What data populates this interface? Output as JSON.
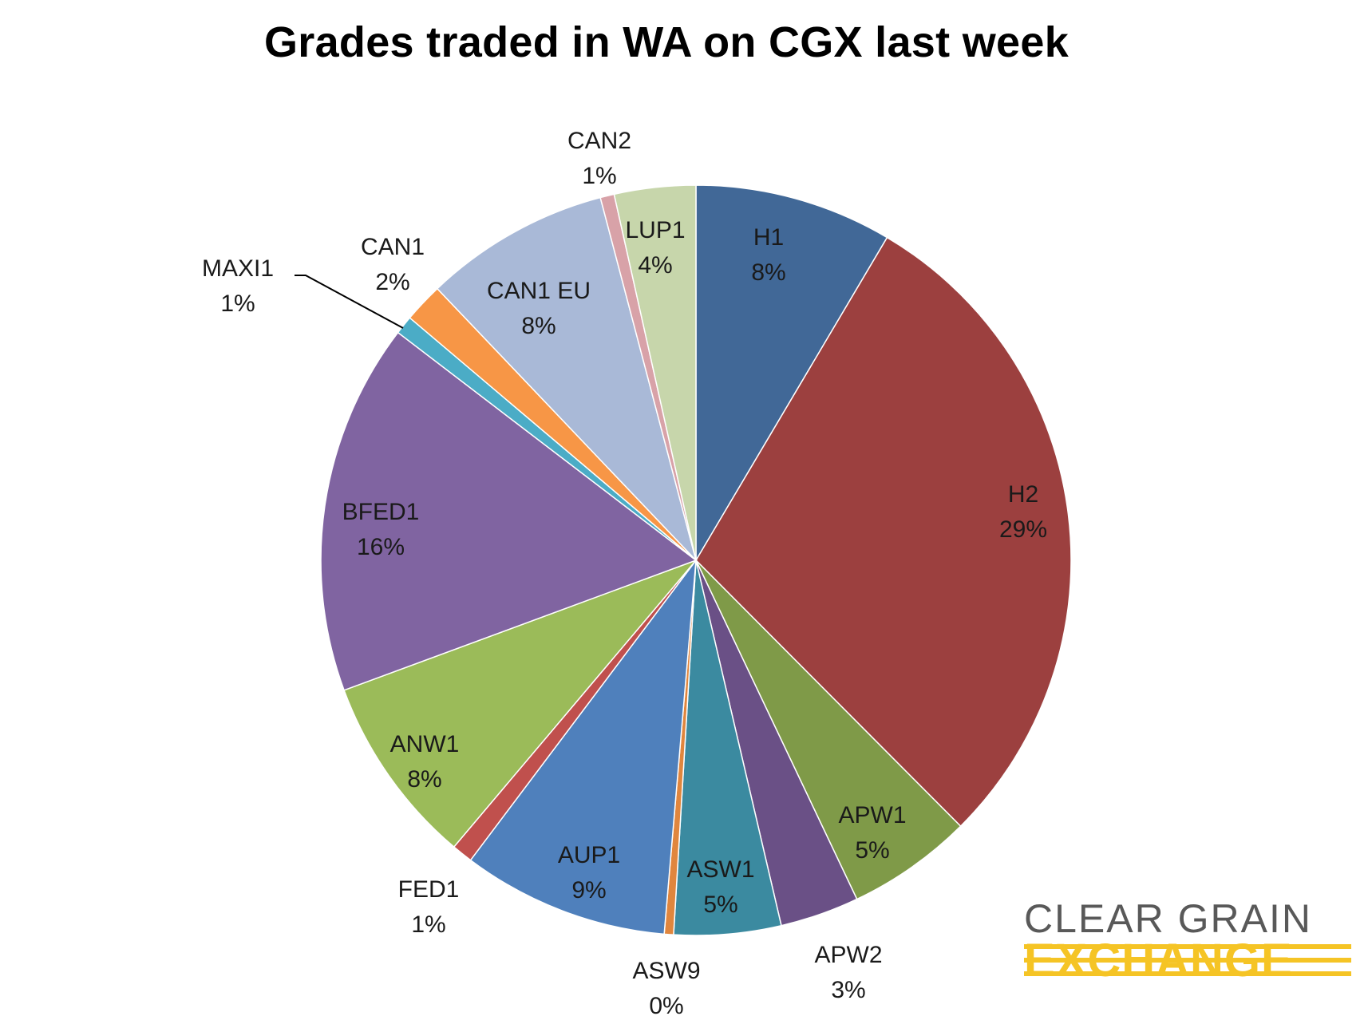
{
  "chart_data": {
    "type": "pie",
    "title": "Grades traded in WA on CGX last week",
    "start_angle_deg": 0,
    "direction": "clockwise",
    "slices": [
      {
        "label": "H1",
        "pct_label": "8%",
        "value": 8.5,
        "color": "#416897"
      },
      {
        "label": "H2",
        "pct_label": "29%",
        "value": 29.0,
        "color": "#9c403f"
      },
      {
        "label": "APW1",
        "pct_label": "5%",
        "value": 5.4,
        "color": "#7f9a48"
      },
      {
        "label": "APW2",
        "pct_label": "3%",
        "value": 3.4,
        "color": "#6a5086"
      },
      {
        "label": "ASW1",
        "pct_label": "5%",
        "value": 4.6,
        "color": "#3b8aa0"
      },
      {
        "label": "ASW9",
        "pct_label": "0%",
        "value": 0.4,
        "color": "#e0863e"
      },
      {
        "label": "AUP1",
        "pct_label": "9%",
        "value": 8.9,
        "color": "#4f80bc"
      },
      {
        "label": "FED1",
        "pct_label": "1%",
        "value": 0.9,
        "color": "#c0504d"
      },
      {
        "label": "ANW1",
        "pct_label": "8%",
        "value": 8.2,
        "color": "#9bbb59"
      },
      {
        "label": "BFED1",
        "pct_label": "16%",
        "value": 16.0,
        "color": "#8064a1"
      },
      {
        "label": "MAXI1",
        "pct_label": "1%",
        "value": 0.8,
        "color": "#4bacc6"
      },
      {
        "label": "CAN1",
        "pct_label": "2%",
        "value": 1.7,
        "color": "#f79646"
      },
      {
        "label": "CAN1 EU",
        "pct_label": "8%",
        "value": 8.0,
        "color": "#a9b9d7"
      },
      {
        "label": "CAN2",
        "pct_label": "1%",
        "value": 0.6,
        "color": "#d8a2a8"
      },
      {
        "label": "LUP1",
        "pct_label": "4%",
        "value": 3.5,
        "color": "#c7d6ab"
      }
    ]
  },
  "logo": {
    "line1": "CLEAR GRAIN",
    "line2": "EXCHANGE",
    "line1_color": "#595959",
    "line2_color": "#f5c425"
  }
}
